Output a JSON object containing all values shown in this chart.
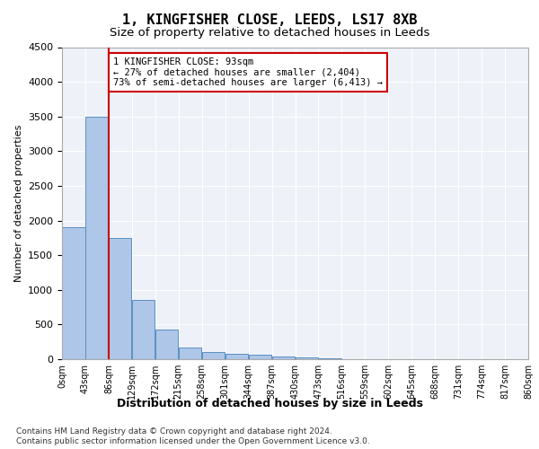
{
  "title1": "1, KINGFISHER CLOSE, LEEDS, LS17 8XB",
  "title2": "Size of property relative to detached houses in Leeds",
  "xlabel": "Distribution of detached houses by size in Leeds",
  "ylabel": "Number of detached properties",
  "bar_values": [
    1900,
    3500,
    1750,
    850,
    430,
    170,
    100,
    80,
    60,
    40,
    20,
    10,
    5,
    3,
    2,
    1,
    1,
    1,
    1,
    0
  ],
  "bar_edge_labels": [
    "0sqm",
    "43sqm",
    "86sqm",
    "129sqm",
    "172sqm",
    "215sqm",
    "258sqm",
    "301sqm",
    "344sqm",
    "387sqm",
    "430sqm",
    "473sqm",
    "516sqm",
    "559sqm",
    "602sqm",
    "645sqm",
    "688sqm",
    "731sqm",
    "774sqm",
    "817sqm",
    "860sqm"
  ],
  "bar_color": "#aec6e8",
  "bar_edge_color": "#5a8fc2",
  "vline_x": 2.0,
  "vline_color": "#cc0000",
  "annotation_text": "1 KINGFISHER CLOSE: 93sqm\n← 27% of detached houses are smaller (2,404)\n73% of semi-detached houses are larger (6,413) →",
  "annotation_box_color": "#ffffff",
  "annotation_box_edge": "#cc0000",
  "ylim": [
    0,
    4500
  ],
  "yticks": [
    0,
    500,
    1000,
    1500,
    2000,
    2500,
    3000,
    3500,
    4000,
    4500
  ],
  "footer1": "Contains HM Land Registry data © Crown copyright and database right 2024.",
  "footer2": "Contains public sector information licensed under the Open Government Licence v3.0.",
  "plot_bg_color": "#eef2f8"
}
